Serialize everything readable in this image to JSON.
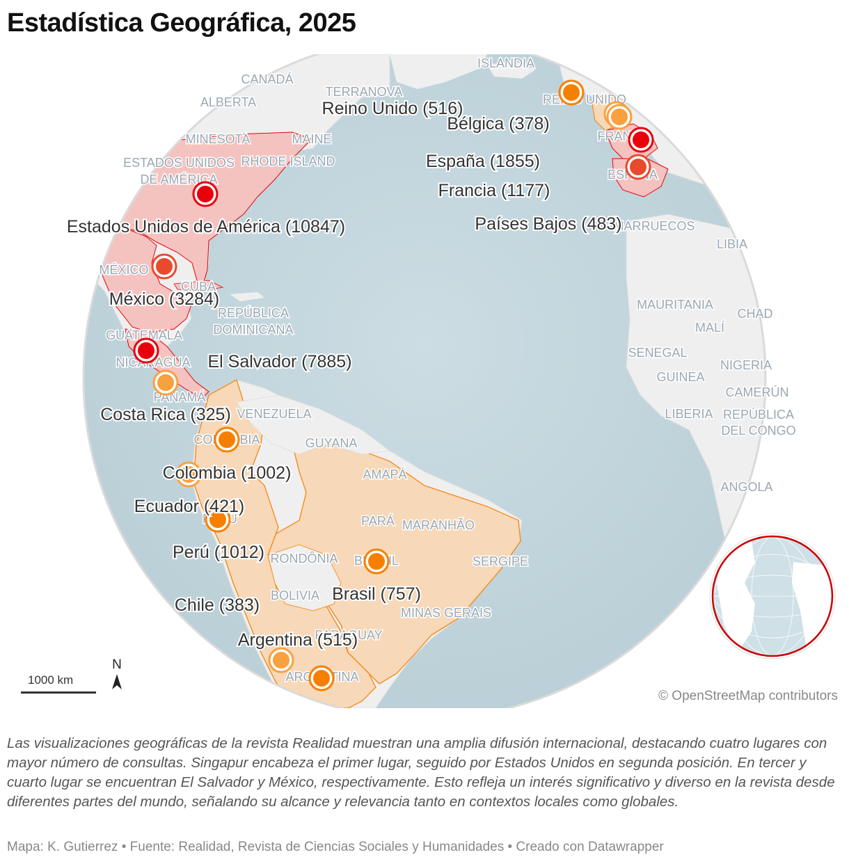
{
  "title": "Estadística Geográfica, 2025",
  "geo_labels": {
    "islandia": "ISLANDIA",
    "canada": "CANADÁ",
    "alberta": "ALBERTA",
    "terranova": "TERRANOVA",
    "minesota": "MINESOTA",
    "maine": "MAINE",
    "eeuu_1": "ESTADOS UNIDOS",
    "eeuu_2": "DE AMÉRICA",
    "rhode": "RHODE ISLAND",
    "reino_unido": "REINO UNIDO",
    "francia": "FRANCIA",
    "espana": "ESPAÑA",
    "marruecos": "MARRUECOS",
    "libia": "LIBIA",
    "mexico": "MÉXICO",
    "cuba": "CUBA",
    "rd_1": "REPÚBLICA",
    "rd_2": "DOMINICANA",
    "mauritania": "MAURITANIA",
    "chad": "CHAD",
    "mali": "MALÍ",
    "guatemala": "GUATEMALA",
    "nicaragua": "NICARAGUA",
    "senegal": "SENEGAL",
    "nigeria": "NIGERIA",
    "guinea": "GUINEA",
    "camerun": "CAMERÚN",
    "panama": "PANAMÁ",
    "liberia": "LIBERIA",
    "rdc_1": "REPÚBLICA",
    "rdc_2": "DEL CONGO",
    "venezuela": "VENEZUELA",
    "guyana": "GUYANA",
    "colombia": "COLOMBIA",
    "amapa": "AMAPÁ",
    "angola": "ANGOLA",
    "para": "PARÁ",
    "maranhao": "MARANHÃO",
    "peru": "PERÚ",
    "rondonia": "RONDÔNIA",
    "brasil": "BRASIL",
    "sergipe": "SERGIPE",
    "bolivia": "BOLIVIA",
    "minas": "MINAS GERAIS",
    "paraguay": "PARAGUAY",
    "argentina": "ARGENTINA"
  },
  "markers": [
    {
      "country": "Estados Unidos de América",
      "value": 10847,
      "label": "Estados Unidos de América (10847)",
      "color": "#e8000b"
    },
    {
      "country": "El Salvador",
      "value": 7885,
      "label": "El Salvador (7885)",
      "color": "#e8000b"
    },
    {
      "country": "México",
      "value": 3284,
      "label": "México (3284)",
      "color": "#e84a2e"
    },
    {
      "country": "España",
      "value": 1855,
      "label": "España (1855)",
      "color": "#e84a2e"
    },
    {
      "country": "Francia",
      "value": 1177,
      "label": "Francia (1177)",
      "color": "#e8000b"
    },
    {
      "country": "Perú",
      "value": 1012,
      "label": "Perú (1012)",
      "color": "#f77f00"
    },
    {
      "country": "Colombia",
      "value": 1002,
      "label": "Colombia (1002)",
      "color": "#f77f00"
    },
    {
      "country": "Brasil",
      "value": 757,
      "label": "Brasil (757)",
      "color": "#f77f00"
    },
    {
      "country": "Reino Unido",
      "value": 516,
      "label": "Reino Unido (516)",
      "color": "#f77f00"
    },
    {
      "country": "Argentina",
      "value": 515,
      "label": "Argentina (515)",
      "color": "#f77f00"
    },
    {
      "country": "Países Bajos",
      "value": 483,
      "label": "Países Bajos (483)",
      "color": "#f9a03f"
    },
    {
      "country": "Ecuador",
      "value": 421,
      "label": "Ecuador (421)",
      "color": "#f9a03f"
    },
    {
      "country": "Chile",
      "value": 383,
      "label": "Chile (383)",
      "color": "#f9a03f"
    },
    {
      "country": "Bélgica",
      "value": 378,
      "label": "Bélgica (378)",
      "color": "#f9a03f"
    },
    {
      "country": "Costa Rica",
      "value": 325,
      "label": "Costa Rica (325)",
      "color": "#f9a03f"
    }
  ],
  "scale_label": "1000 km",
  "north_label": "N",
  "attribution": "© OpenStreetMap contributors",
  "description": "Las visualizaciones geográficas de la revista Realidad muestran una amplia difusión internacional, destacando cuatro lugares con mayor número de consultas. Singapur encabeza el primer lugar, seguido por Estados Unidos en segunda posición. En tercer y cuarto lugar se encuentran El Salvador y México, respectivamente. Esto refleja un interés significativo y diverso en la revista desde diferentes partes del mundo, señalando su alcance y relevancia tanto en contextos locales como globales.",
  "byline": "Mapa: K. Gutierrez • Fuente: Realidad, Revista de Ciencias Sociales y Humanidades • Creado con Datawrapper",
  "colors": {
    "ocean": "#c9dbe2",
    "land": "#efefef",
    "usa_fill": "#f4c3c0",
    "latam_fill": "#f7d8b8",
    "high": "#e8000b",
    "mid": "#e84a2e",
    "orange": "#f77f00",
    "light_orange": "#f9a03f"
  }
}
